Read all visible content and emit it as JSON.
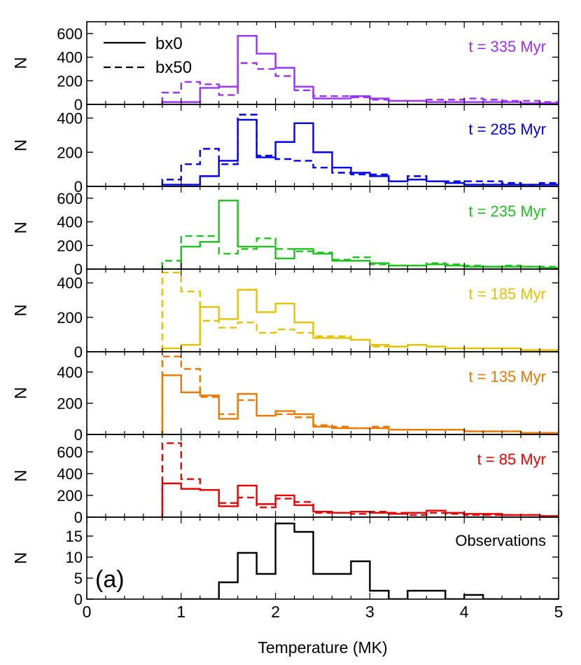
{
  "figure": {
    "panel_label": "(a)",
    "xlabel": "Temperature (MK)",
    "ylabel": "N",
    "legend": [
      {
        "label": "bx0",
        "style": "solid"
      },
      {
        "label": "bx50",
        "style": "dashed"
      }
    ]
  },
  "chart_data": {
    "type": "histogram",
    "xlim": [
      0,
      5
    ],
    "x_ticks": [
      0,
      1,
      2,
      3,
      4,
      5
    ],
    "x_tick_labels": [
      "0",
      "1",
      "2",
      "3",
      "4",
      "5"
    ],
    "bin_edges": [
      0.8,
      1.0,
      1.2,
      1.4,
      1.6,
      1.8,
      2.0,
      2.2,
      2.4,
      2.6,
      2.8,
      3.0,
      3.2,
      3.4,
      3.6,
      3.8,
      4.0,
      4.2,
      4.4,
      4.6,
      4.8,
      5.0
    ],
    "xlabel": "Temperature (MK)",
    "ylabel": "N",
    "panels": [
      {
        "label": "t = 335 Myr",
        "color": "#9b30ff",
        "ylim": [
          0,
          700
        ],
        "y_ticks": [
          0,
          200,
          400,
          600
        ],
        "y_tick_labels": [
          "0",
          "200",
          "400",
          "600"
        ],
        "series": [
          {
            "name": "bx0",
            "style": "solid",
            "values": [
              20,
              20,
              140,
              150,
              580,
              430,
              310,
              150,
              50,
              50,
              70,
              50,
              30,
              30,
              20,
              20,
              20,
              20,
              20,
              10,
              10
            ]
          },
          {
            "name": "bx50",
            "style": "dashed",
            "values": [
              100,
              190,
              170,
              80,
              350,
              300,
              240,
              120,
              70,
              70,
              60,
              40,
              30,
              30,
              40,
              40,
              50,
              40,
              30,
              30,
              20
            ]
          }
        ]
      },
      {
        "label": "t = 285 Myr",
        "color": "#0000ee",
        "ylim": [
          0,
          480
        ],
        "y_ticks": [
          0,
          200,
          400
        ],
        "y_tick_labels": [
          "0",
          "200",
          "400"
        ],
        "series": [
          {
            "name": "bx0",
            "style": "solid",
            "values": [
              10,
              10,
              60,
              150,
              390,
              170,
              260,
              370,
              200,
              110,
              80,
              60,
              30,
              40,
              30,
              20,
              10,
              10,
              10,
              10,
              10
            ]
          },
          {
            "name": "bx50",
            "style": "dashed",
            "values": [
              40,
              130,
              220,
              130,
              420,
              180,
              160,
              150,
              110,
              80,
              70,
              70,
              30,
              60,
              30,
              30,
              30,
              30,
              20,
              10,
              20
            ]
          }
        ]
      },
      {
        "label": "t = 235 Myr",
        "color": "#1ec31e",
        "ylim": [
          0,
          700
        ],
        "y_ticks": [
          0,
          200,
          400,
          600
        ],
        "y_tick_labels": [
          "0",
          "200",
          "400",
          "600"
        ],
        "series": [
          {
            "name": "bx0",
            "style": "solid",
            "values": [
              0,
              190,
              230,
              580,
              190,
              190,
              90,
              170,
              130,
              70,
              70,
              50,
              30,
              30,
              40,
              30,
              20,
              20,
              20,
              20,
              10
            ]
          },
          {
            "name": "bx50",
            "style": "dashed",
            "values": [
              70,
              280,
              280,
              130,
              170,
              260,
              170,
              150,
              140,
              80,
              100,
              40,
              30,
              30,
              50,
              40,
              30,
              20,
              30,
              20,
              20
            ]
          }
        ]
      },
      {
        "label": "t = 185 Myr",
        "color": "#e6c300",
        "ylim": [
          0,
          480
        ],
        "y_ticks": [
          0,
          200,
          400
        ],
        "y_tick_labels": [
          "0",
          "200",
          "400"
        ],
        "series": [
          {
            "name": "bx0",
            "style": "solid",
            "values": [
              20,
              40,
              260,
              190,
              360,
              230,
              280,
              170,
              80,
              80,
              70,
              40,
              30,
              40,
              30,
              20,
              20,
              20,
              20,
              10,
              10
            ]
          },
          {
            "name": "bx50",
            "style": "dashed",
            "values": [
              460,
              350,
              180,
              140,
              170,
              110,
              130,
              110,
              90,
              90,
              70,
              30,
              30,
              40,
              30,
              20,
              20,
              20,
              20,
              10,
              10
            ]
          }
        ]
      },
      {
        "label": "t = 135 Myr",
        "color": "#f07800",
        "ylim": [
          0,
          530
        ],
        "y_ticks": [
          0,
          200,
          400
        ],
        "y_tick_labels": [
          "0",
          "200",
          "400"
        ],
        "series": [
          {
            "name": "bx0",
            "style": "solid",
            "values": [
              380,
              270,
              250,
              100,
              260,
              120,
              150,
              130,
              50,
              40,
              40,
              40,
              30,
              30,
              30,
              30,
              20,
              20,
              20,
              10,
              10
            ]
          },
          {
            "name": "bx50",
            "style": "dashed",
            "values": [
              500,
              420,
              240,
              130,
              220,
              120,
              130,
              110,
              60,
              50,
              40,
              50,
              30,
              30,
              30,
              30,
              20,
              20,
              20,
              10,
              10
            ]
          }
        ]
      },
      {
        "label": "t = 85 Myr",
        "color": "#ee0000",
        "ylim": [
          0,
          760
        ],
        "y_ticks": [
          0,
          200,
          400,
          600
        ],
        "y_tick_labels": [
          "0",
          "200",
          "400",
          "600"
        ],
        "series": [
          {
            "name": "bx0",
            "style": "solid",
            "values": [
              310,
              260,
              250,
              100,
              290,
              120,
              200,
              110,
              50,
              40,
              50,
              40,
              30,
              40,
              60,
              40,
              30,
              30,
              20,
              20,
              10
            ]
          },
          {
            "name": "bx50",
            "style": "dashed",
            "values": [
              680,
              350,
              250,
              130,
              180,
              90,
              170,
              140,
              40,
              40,
              30,
              50,
              40,
              20,
              40,
              30,
              20,
              20,
              20,
              20,
              10
            ]
          }
        ]
      },
      {
        "label": "Observations",
        "color": "#000000",
        "ylim": [
          0,
          19.5
        ],
        "y_ticks": [
          0,
          5,
          10,
          15
        ],
        "y_tick_labels": [
          "0",
          "5",
          "10",
          "15"
        ],
        "series": [
          {
            "name": "",
            "style": "solid",
            "values": [
              0,
              0,
              0,
              4,
              11,
              6,
              18,
              16,
              6,
              6,
              9,
              2,
              0,
              2,
              2,
              0,
              1,
              0,
              0,
              0,
              0
            ]
          }
        ]
      }
    ]
  }
}
